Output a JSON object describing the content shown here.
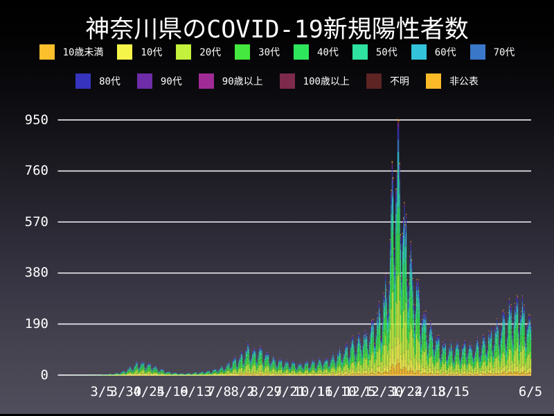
{
  "page": {
    "background_top": "#000000",
    "background_bottom": "#504d5c",
    "text_color": "#ffffff",
    "gridline_color": "#f2f1f6"
  },
  "chart_data": {
    "type": "bar",
    "stacked": true,
    "title": "神奈川県のCOVID-19新規陽性者数",
    "ylabel": "",
    "xlabel": "",
    "ylim": [
      0,
      1000
    ],
    "y_ticks": [
      0,
      190,
      380,
      570,
      760,
      950
    ],
    "grid": true,
    "legend_position": "top",
    "date_range": [
      "2020-01-18",
      "2021-06-05"
    ],
    "x_ticks": [
      {
        "label": "3/5",
        "date": "2020-03-05"
      },
      {
        "label": "3/30",
        "date": "2020-03-30"
      },
      {
        "label": "4/24",
        "date": "2020-04-24"
      },
      {
        "label": "5/19",
        "date": "2020-05-19"
      },
      {
        "label": "6/13",
        "date": "2020-06-13"
      },
      {
        "label": "7/8",
        "date": "2020-07-08"
      },
      {
        "label": "8/2",
        "date": "2020-08-02"
      },
      {
        "label": "8/27",
        "date": "2020-08-27"
      },
      {
        "label": "9/21",
        "date": "2020-09-21"
      },
      {
        "label": "10/16",
        "date": "2020-10-16"
      },
      {
        "label": "11/10",
        "date": "2020-11-10"
      },
      {
        "label": "12/5",
        "date": "2020-12-05"
      },
      {
        "label": "12/30",
        "date": "2020-12-30"
      },
      {
        "label": "1/24",
        "date": "2021-01-24"
      },
      {
        "label": "2/18",
        "date": "2021-02-18"
      },
      {
        "label": "3/15",
        "date": "2021-03-15"
      },
      {
        "label": "6/5",
        "date": "2021-06-05"
      }
    ],
    "series": [
      {
        "name": "10歳未満",
        "color": "#fcc02c",
        "share": 0.05
      },
      {
        "name": "10代",
        "color": "#f5f549",
        "share": 0.09
      },
      {
        "name": "20代",
        "color": "#c3f13c",
        "share": 0.24
      },
      {
        "name": "30代",
        "color": "#45e83e",
        "share": 0.16
      },
      {
        "name": "40代",
        "color": "#2ee65c",
        "share": 0.14
      },
      {
        "name": "50代",
        "color": "#2fe2a2",
        "share": 0.12
      },
      {
        "name": "60代",
        "color": "#33c3db",
        "share": 0.07
      },
      {
        "name": "70代",
        "color": "#3a77c9",
        "share": 0.055
      },
      {
        "name": "80代",
        "color": "#3634bf",
        "share": 0.04
      },
      {
        "name": "90代",
        "color": "#6f2ca8",
        "share": 0.018
      },
      {
        "name": "90歳以上",
        "color": "#a02b96",
        "share": 0.004
      },
      {
        "name": "100歳以上",
        "color": "#7d2a4d",
        "share": 0.001
      },
      {
        "name": "不明",
        "color": "#5e2424",
        "share": 0.004
      },
      {
        "name": "非公表",
        "color": "#fbba28",
        "share": 0.008
      }
    ],
    "legend_rows": [
      [
        0,
        1,
        2,
        3,
        4,
        5,
        6,
        7
      ],
      [
        8,
        9,
        10,
        11,
        12,
        13
      ]
    ],
    "peak": {
      "date": "2021-01-09",
      "value": 990
    },
    "weekday_pattern": [
      0.72,
      0.58,
      0.82,
      1.08,
      1.18,
      1.22,
      1.15
    ],
    "daily_totals_smoothed": [
      [
        "2020-01-18",
        0
      ],
      [
        "2020-02-01",
        1
      ],
      [
        "2020-02-15",
        1
      ],
      [
        "2020-02-29",
        2
      ],
      [
        "2020-03-07",
        4
      ],
      [
        "2020-03-14",
        6
      ],
      [
        "2020-03-21",
        9
      ],
      [
        "2020-03-28",
        16
      ],
      [
        "2020-04-04",
        30
      ],
      [
        "2020-04-11",
        44
      ],
      [
        "2020-04-18",
        46
      ],
      [
        "2020-04-25",
        38
      ],
      [
        "2020-05-02",
        28
      ],
      [
        "2020-05-09",
        18
      ],
      [
        "2020-05-16",
        12
      ],
      [
        "2020-05-23",
        9
      ],
      [
        "2020-05-30",
        8
      ],
      [
        "2020-06-06",
        9
      ],
      [
        "2020-06-13",
        11
      ],
      [
        "2020-06-20",
        13
      ],
      [
        "2020-06-27",
        17
      ],
      [
        "2020-07-04",
        22
      ],
      [
        "2020-07-11",
        30
      ],
      [
        "2020-07-18",
        42
      ],
      [
        "2020-07-25",
        58
      ],
      [
        "2020-08-01",
        76
      ],
      [
        "2020-08-08",
        98
      ],
      [
        "2020-08-15",
        92
      ],
      [
        "2020-08-22",
        84
      ],
      [
        "2020-08-29",
        68
      ],
      [
        "2020-09-05",
        58
      ],
      [
        "2020-09-12",
        52
      ],
      [
        "2020-09-19",
        48
      ],
      [
        "2020-09-26",
        44
      ],
      [
        "2020-10-03",
        42
      ],
      [
        "2020-10-10",
        46
      ],
      [
        "2020-10-17",
        50
      ],
      [
        "2020-10-24",
        52
      ],
      [
        "2020-10-31",
        56
      ],
      [
        "2020-11-07",
        68
      ],
      [
        "2020-11-14",
        84
      ],
      [
        "2020-11-21",
        100
      ],
      [
        "2020-11-28",
        115
      ],
      [
        "2020-12-05",
        130
      ],
      [
        "2020-12-12",
        150
      ],
      [
        "2020-12-19",
        175
      ],
      [
        "2020-12-26",
        215
      ],
      [
        "2021-01-02",
        300
      ],
      [
        "2021-01-06",
        450
      ],
      [
        "2021-01-09",
        700
      ],
      [
        "2021-01-12",
        790
      ],
      [
        "2021-01-16",
        690
      ],
      [
        "2021-01-20",
        560
      ],
      [
        "2021-01-24",
        450
      ],
      [
        "2021-01-31",
        340
      ],
      [
        "2021-02-07",
        250
      ],
      [
        "2021-02-14",
        185
      ],
      [
        "2021-02-21",
        140
      ],
      [
        "2021-02-28",
        115
      ],
      [
        "2021-03-07",
        103
      ],
      [
        "2021-03-14",
        96
      ],
      [
        "2021-03-21",
        98
      ],
      [
        "2021-03-28",
        104
      ],
      [
        "2021-04-04",
        102
      ],
      [
        "2021-04-11",
        112
      ],
      [
        "2021-04-18",
        130
      ],
      [
        "2021-04-25",
        152
      ],
      [
        "2021-05-02",
        172
      ],
      [
        "2021-05-09",
        200
      ],
      [
        "2021-05-16",
        238
      ],
      [
        "2021-05-23",
        252
      ],
      [
        "2021-05-30",
        222
      ],
      [
        "2021-06-05",
        192
      ]
    ]
  }
}
